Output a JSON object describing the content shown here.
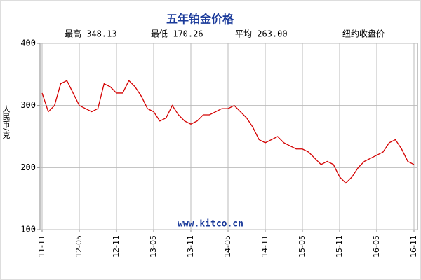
{
  "chart_data": {
    "type": "line",
    "title": "五年铂金价格",
    "stats": [
      "最高 348.13",
      "最低 170.26",
      "平均 263.00"
    ],
    "subtitle": "纽约收盘价",
    "y_label": "人民币/克",
    "annotation": "www.kitco.cn",
    "categories": [
      "11-11",
      null,
      null,
      null,
      null,
      null,
      "12-05",
      null,
      null,
      null,
      null,
      null,
      "12-11",
      null,
      null,
      null,
      null,
      null,
      "13-05",
      null,
      null,
      null,
      null,
      null,
      "13-11",
      null,
      null,
      null,
      null,
      null,
      "14-05",
      null,
      null,
      null,
      null,
      null,
      "14-11",
      null,
      null,
      null,
      null,
      null,
      "15-05",
      null,
      null,
      null,
      null,
      null,
      "15-11",
      null,
      null,
      null,
      null,
      null,
      "16-05",
      null,
      null,
      null,
      null,
      null,
      "16-11"
    ],
    "series": [
      {
        "color": "#d40000",
        "values": [
          320,
          290,
          300,
          335,
          340,
          320,
          300,
          295,
          290,
          295,
          335,
          330,
          320,
          320,
          340,
          330,
          315,
          295,
          290,
          275,
          280,
          300,
          285,
          275,
          270,
          275,
          285,
          285,
          290,
          295,
          295,
          300,
          290,
          280,
          265,
          245,
          240,
          245,
          250,
          240,
          235,
          230,
          230,
          225,
          215,
          205,
          210,
          205,
          185,
          175,
          185,
          200,
          210,
          215,
          220,
          225,
          240,
          245,
          230,
          210,
          205
        ]
      }
    ],
    "ylim": [
      100,
      400
    ],
    "yticks": [
      100,
      200,
      300,
      400
    ],
    "grid": true
  }
}
